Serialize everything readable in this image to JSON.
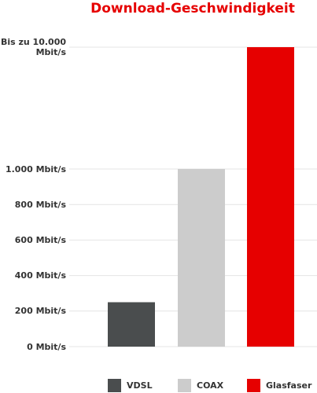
{
  "chart_data": {
    "type": "bar",
    "title": "Download-Geschwindigkeit",
    "categories": [
      "VDSL",
      "COAX",
      "Glasfaser"
    ],
    "values": [
      250,
      1000,
      10000
    ],
    "colors": [
      "#4a4d4e",
      "#cccccc",
      "#e60000"
    ],
    "ylim": [
      0,
      10000
    ],
    "yticks": [
      {
        "value": 0,
        "label": "0 Mbit/s"
      },
      {
        "value": 200,
        "label": "200 Mbit/s"
      },
      {
        "value": 400,
        "label": "400 Mbit/s"
      },
      {
        "value": 600,
        "label": "600 Mbit/s"
      },
      {
        "value": 800,
        "label": "800 Mbit/s"
      },
      {
        "value": 1000,
        "label": "1.000 Mbit/s"
      },
      {
        "value": 10000,
        "label": "Bis zu 10.000 Mbit/s"
      }
    ],
    "grid": true
  }
}
